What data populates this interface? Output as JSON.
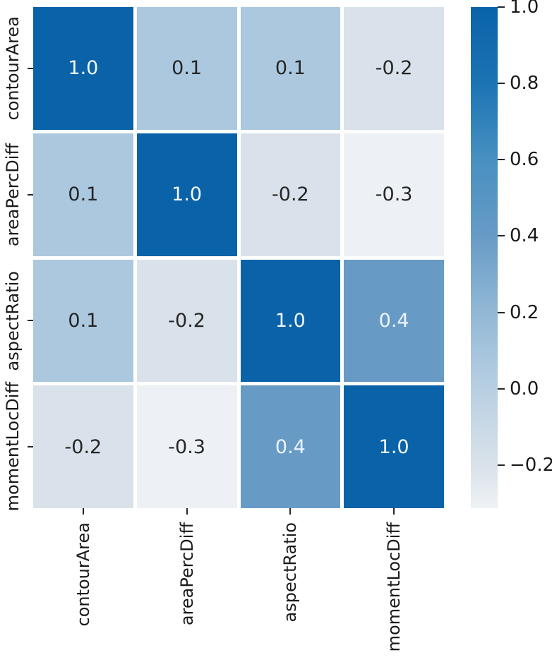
{
  "chart_data": {
    "type": "heatmap",
    "title": "",
    "xlabel": "",
    "ylabel": "",
    "x_labels": [
      "contourArea",
      "areaPercDiff",
      "aspectRatio",
      "momentLocDiff"
    ],
    "y_labels": [
      "contourArea",
      "areaPercDiff",
      "aspectRatio",
      "momentLocDiff"
    ],
    "matrix": [
      [
        1.0,
        0.1,
        0.1,
        -0.2
      ],
      [
        0.1,
        1.0,
        -0.2,
        -0.3
      ],
      [
        0.1,
        -0.2,
        1.0,
        0.4
      ],
      [
        -0.2,
        -0.3,
        0.4,
        1.0
      ]
    ],
    "cell_labels": [
      [
        "1.0",
        "0.1",
        "0.1",
        "-0.2"
      ],
      [
        "0.1",
        "1.0",
        "-0.2",
        "-0.3"
      ],
      [
        "0.1",
        "-0.2",
        "1.0",
        "0.4"
      ],
      [
        "-0.2",
        "-0.3",
        "0.4",
        "1.0"
      ]
    ],
    "value_styles": {
      "1.0": {
        "bg": "#0a63a8",
        "fg": "#f2f7fb"
      },
      "0.4": {
        "bg": "#679bc6",
        "fg": "#eef4fa"
      },
      "0.1": {
        "bg": "#abc8de",
        "fg": "#262626"
      },
      "-0.2": {
        "bg": "#d9e2ea",
        "fg": "#262626"
      },
      "-0.3": {
        "bg": "#edf1f5",
        "fg": "#262626"
      }
    },
    "grid_gap_color": "#ffffff",
    "axis_text_color": "#1a1a1a",
    "colorbar": {
      "position": "right",
      "vmin": -0.313,
      "vmax": 1.0,
      "tick_labels": [
        "1.0",
        "0.8",
        "0.6",
        "0.4",
        "0.2",
        "0.0",
        "−0.2"
      ],
      "tick_values": [
        1.0,
        0.8,
        0.6,
        0.4,
        0.2,
        0.0,
        -0.2
      ],
      "gradient": [
        {
          "pos": 0,
          "color": "#0a63a8"
        },
        {
          "pos": 15.2,
          "color": "#1b74b4"
        },
        {
          "pos": 30.5,
          "color": "#4890c1"
        },
        {
          "pos": 45.7,
          "color": "#679bc6"
        },
        {
          "pos": 60.9,
          "color": "#92b8d6"
        },
        {
          "pos": 76.2,
          "color": "#b8cfe2"
        },
        {
          "pos": 91.4,
          "color": "#d9e2ea"
        },
        {
          "pos": 100,
          "color": "#eef2f5"
        }
      ]
    }
  }
}
